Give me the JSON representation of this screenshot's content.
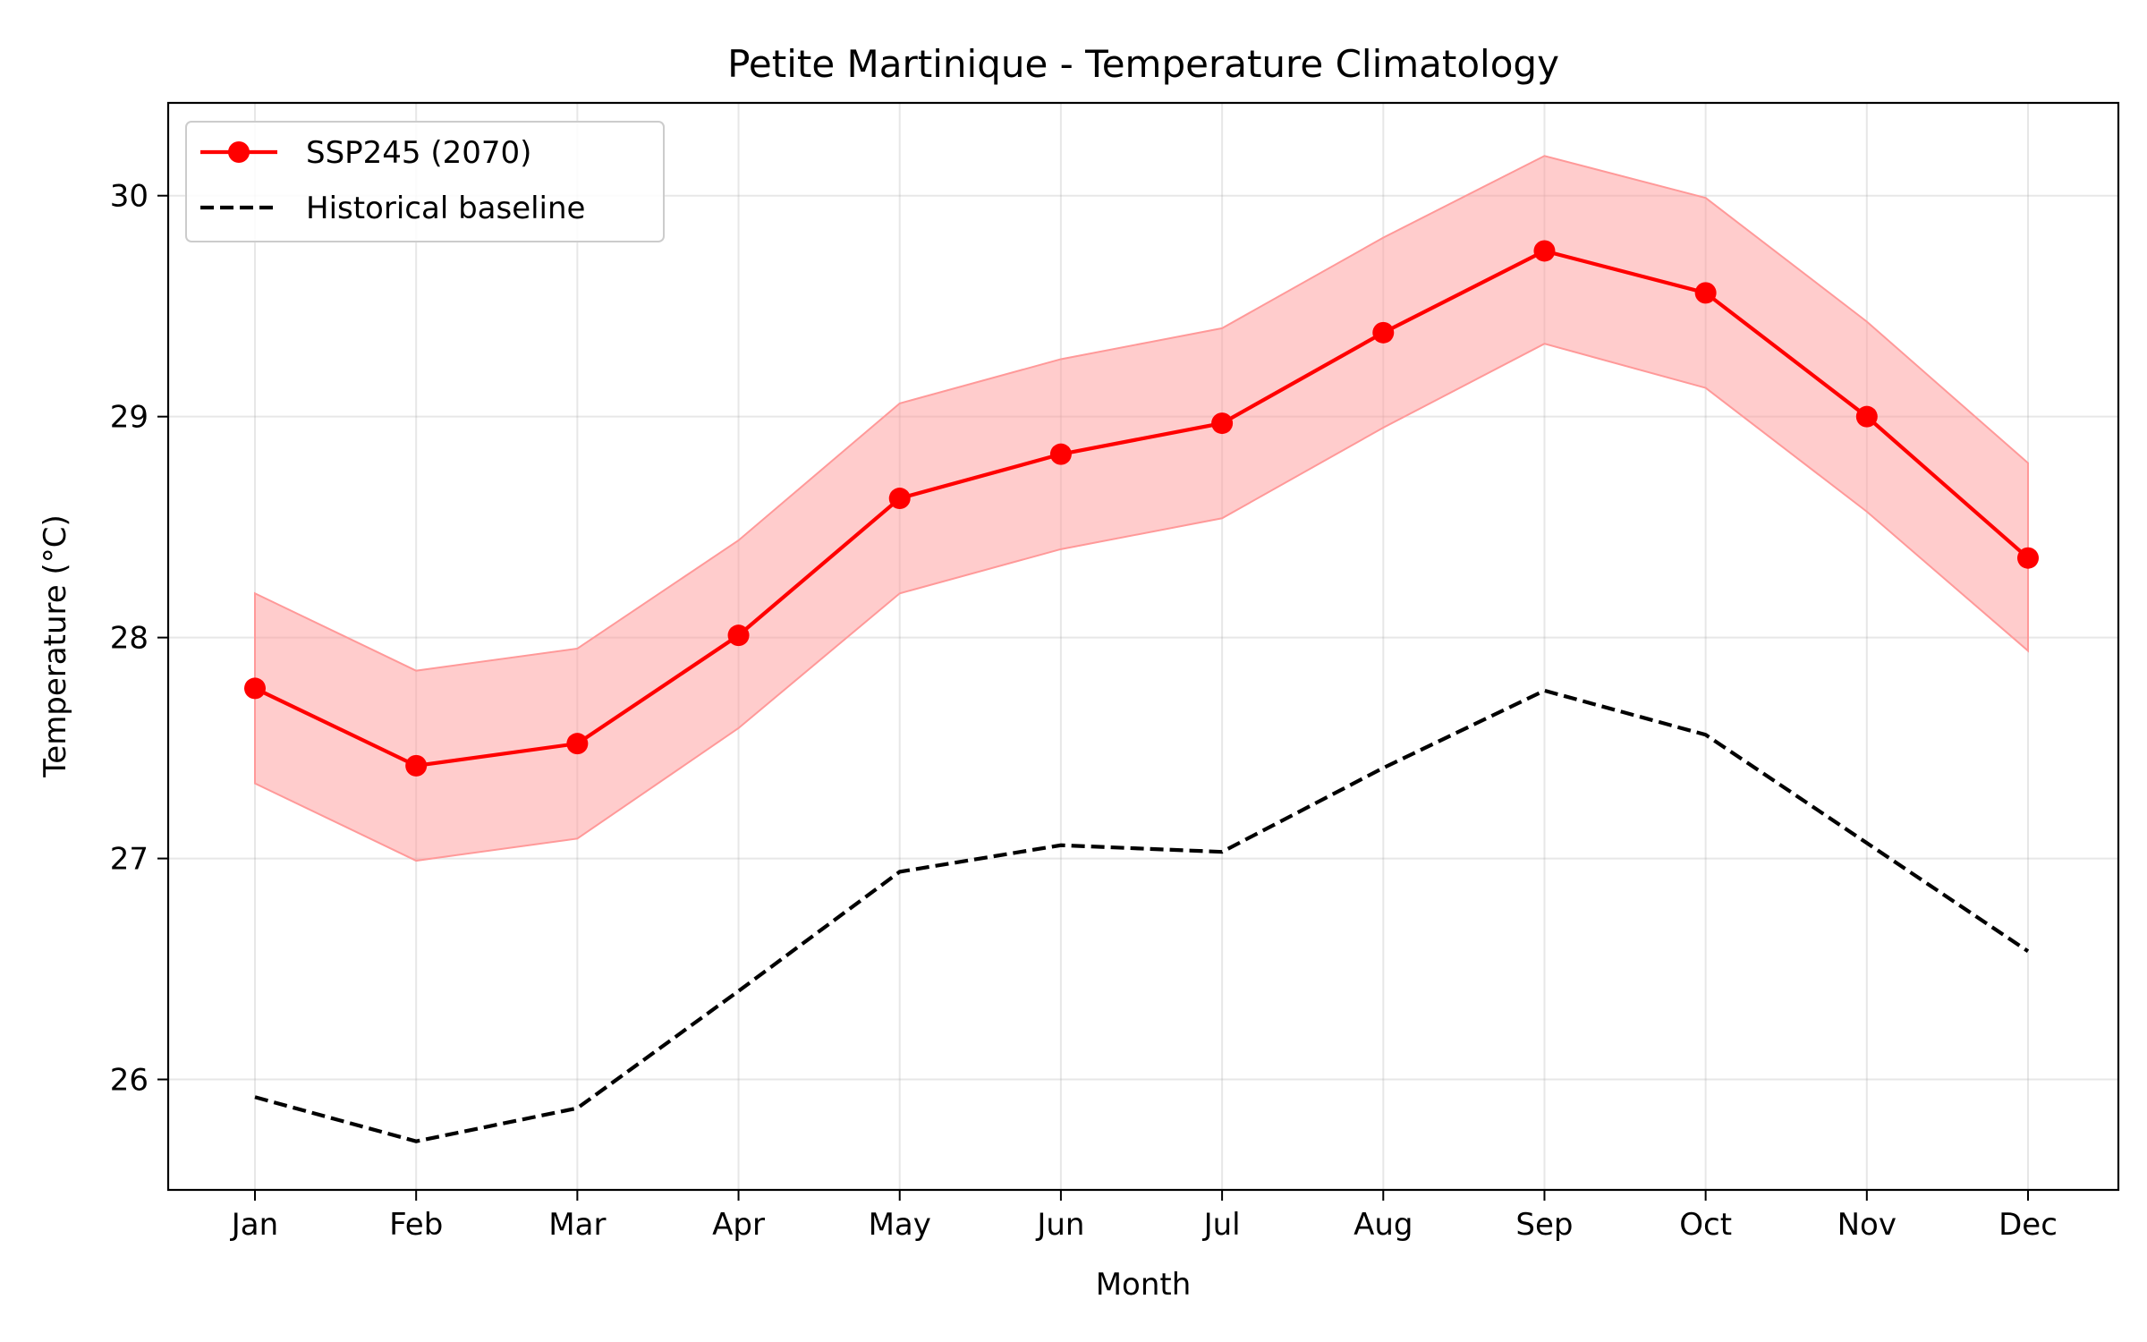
{
  "chart_data": {
    "type": "line",
    "title": "Petite Martinique - Temperature Climatology",
    "xlabel": "Month",
    "ylabel": "Temperature (°C)",
    "categories": [
      "Jan",
      "Feb",
      "Mar",
      "Apr",
      "May",
      "Jun",
      "Jul",
      "Aug",
      "Sep",
      "Oct",
      "Nov",
      "Dec"
    ],
    "ylim": [
      25.5,
      30.42
    ],
    "yticks": [
      26,
      27,
      28,
      29,
      30
    ],
    "grid": true,
    "legend_position": "upper-left",
    "series": [
      {
        "name": "SSP245 (2070)",
        "style": "solid-with-markers",
        "color": "#ff0000",
        "values": [
          27.77,
          27.42,
          27.52,
          28.01,
          28.63,
          28.83,
          28.97,
          29.38,
          29.75,
          29.56,
          29.0,
          28.36
        ],
        "band": {
          "color": "#ff9999",
          "lower": [
            27.34,
            26.99,
            27.09,
            27.59,
            28.2,
            28.4,
            28.54,
            28.95,
            29.33,
            29.13,
            28.57,
            27.94
          ],
          "upper": [
            28.2,
            27.85,
            27.95,
            28.44,
            29.06,
            29.26,
            29.4,
            29.81,
            30.18,
            29.99,
            29.43,
            28.79
          ]
        }
      },
      {
        "name": "Historical baseline",
        "style": "dashed",
        "color": "#000000",
        "values": [
          25.92,
          25.72,
          25.87,
          26.4,
          26.94,
          27.06,
          27.03,
          27.41,
          27.76,
          27.56,
          27.07,
          26.58
        ]
      }
    ]
  }
}
